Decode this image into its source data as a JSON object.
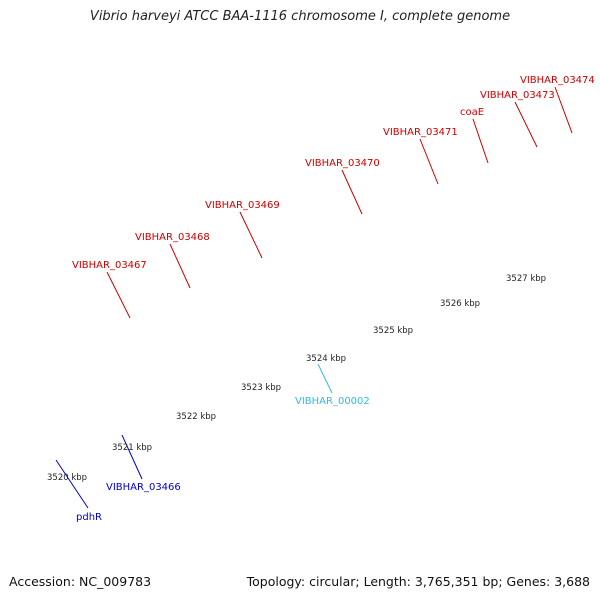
{
  "title": "Vibrio harveyi ATCC BAA-1116 chromosome I, complete genome",
  "footer": {
    "accession": "Accession: NC_009783",
    "summary": "Topology: circular; Length: 3,765,351 bp; Genes: 3,688"
  },
  "colors": {
    "forward_cds": "#ee1111",
    "blue_cds": "#0000dd",
    "green_cds": "#66bb22",
    "gray_cds": "#777777",
    "cyan_track": "#55ccee",
    "backbone": "#888888",
    "tick": "#228822",
    "label_red": "#cc0000",
    "label_blue": "#0000cc",
    "label_cyan": "#33bbdd"
  },
  "scale_labels": [
    "3520 kbp",
    "3521 kbp",
    "3522 kbp",
    "3523 kbp",
    "3524 kbp",
    "3525 kbp",
    "3526 kbp",
    "3527 kbp"
  ],
  "gene_labels": [
    {
      "text": "VIBHAR_03467",
      "color_key": "label_red"
    },
    {
      "text": "VIBHAR_03468",
      "color_key": "label_red"
    },
    {
      "text": "VIBHAR_03469",
      "color_key": "label_red"
    },
    {
      "text": "VIBHAR_03470",
      "color_key": "label_red"
    },
    {
      "text": "VIBHAR_03471",
      "color_key": "label_red"
    },
    {
      "text": "coaE",
      "color_key": "label_red"
    },
    {
      "text": "VIBHAR_03473",
      "color_key": "label_red"
    },
    {
      "text": "VIBHAR_03474",
      "color_key": "label_red"
    },
    {
      "text": "VIBHAR_00002",
      "color_key": "label_cyan"
    },
    {
      "text": "VIBHAR_03466",
      "color_key": "label_blue"
    },
    {
      "text": "pdhR",
      "color_key": "label_blue"
    }
  ]
}
